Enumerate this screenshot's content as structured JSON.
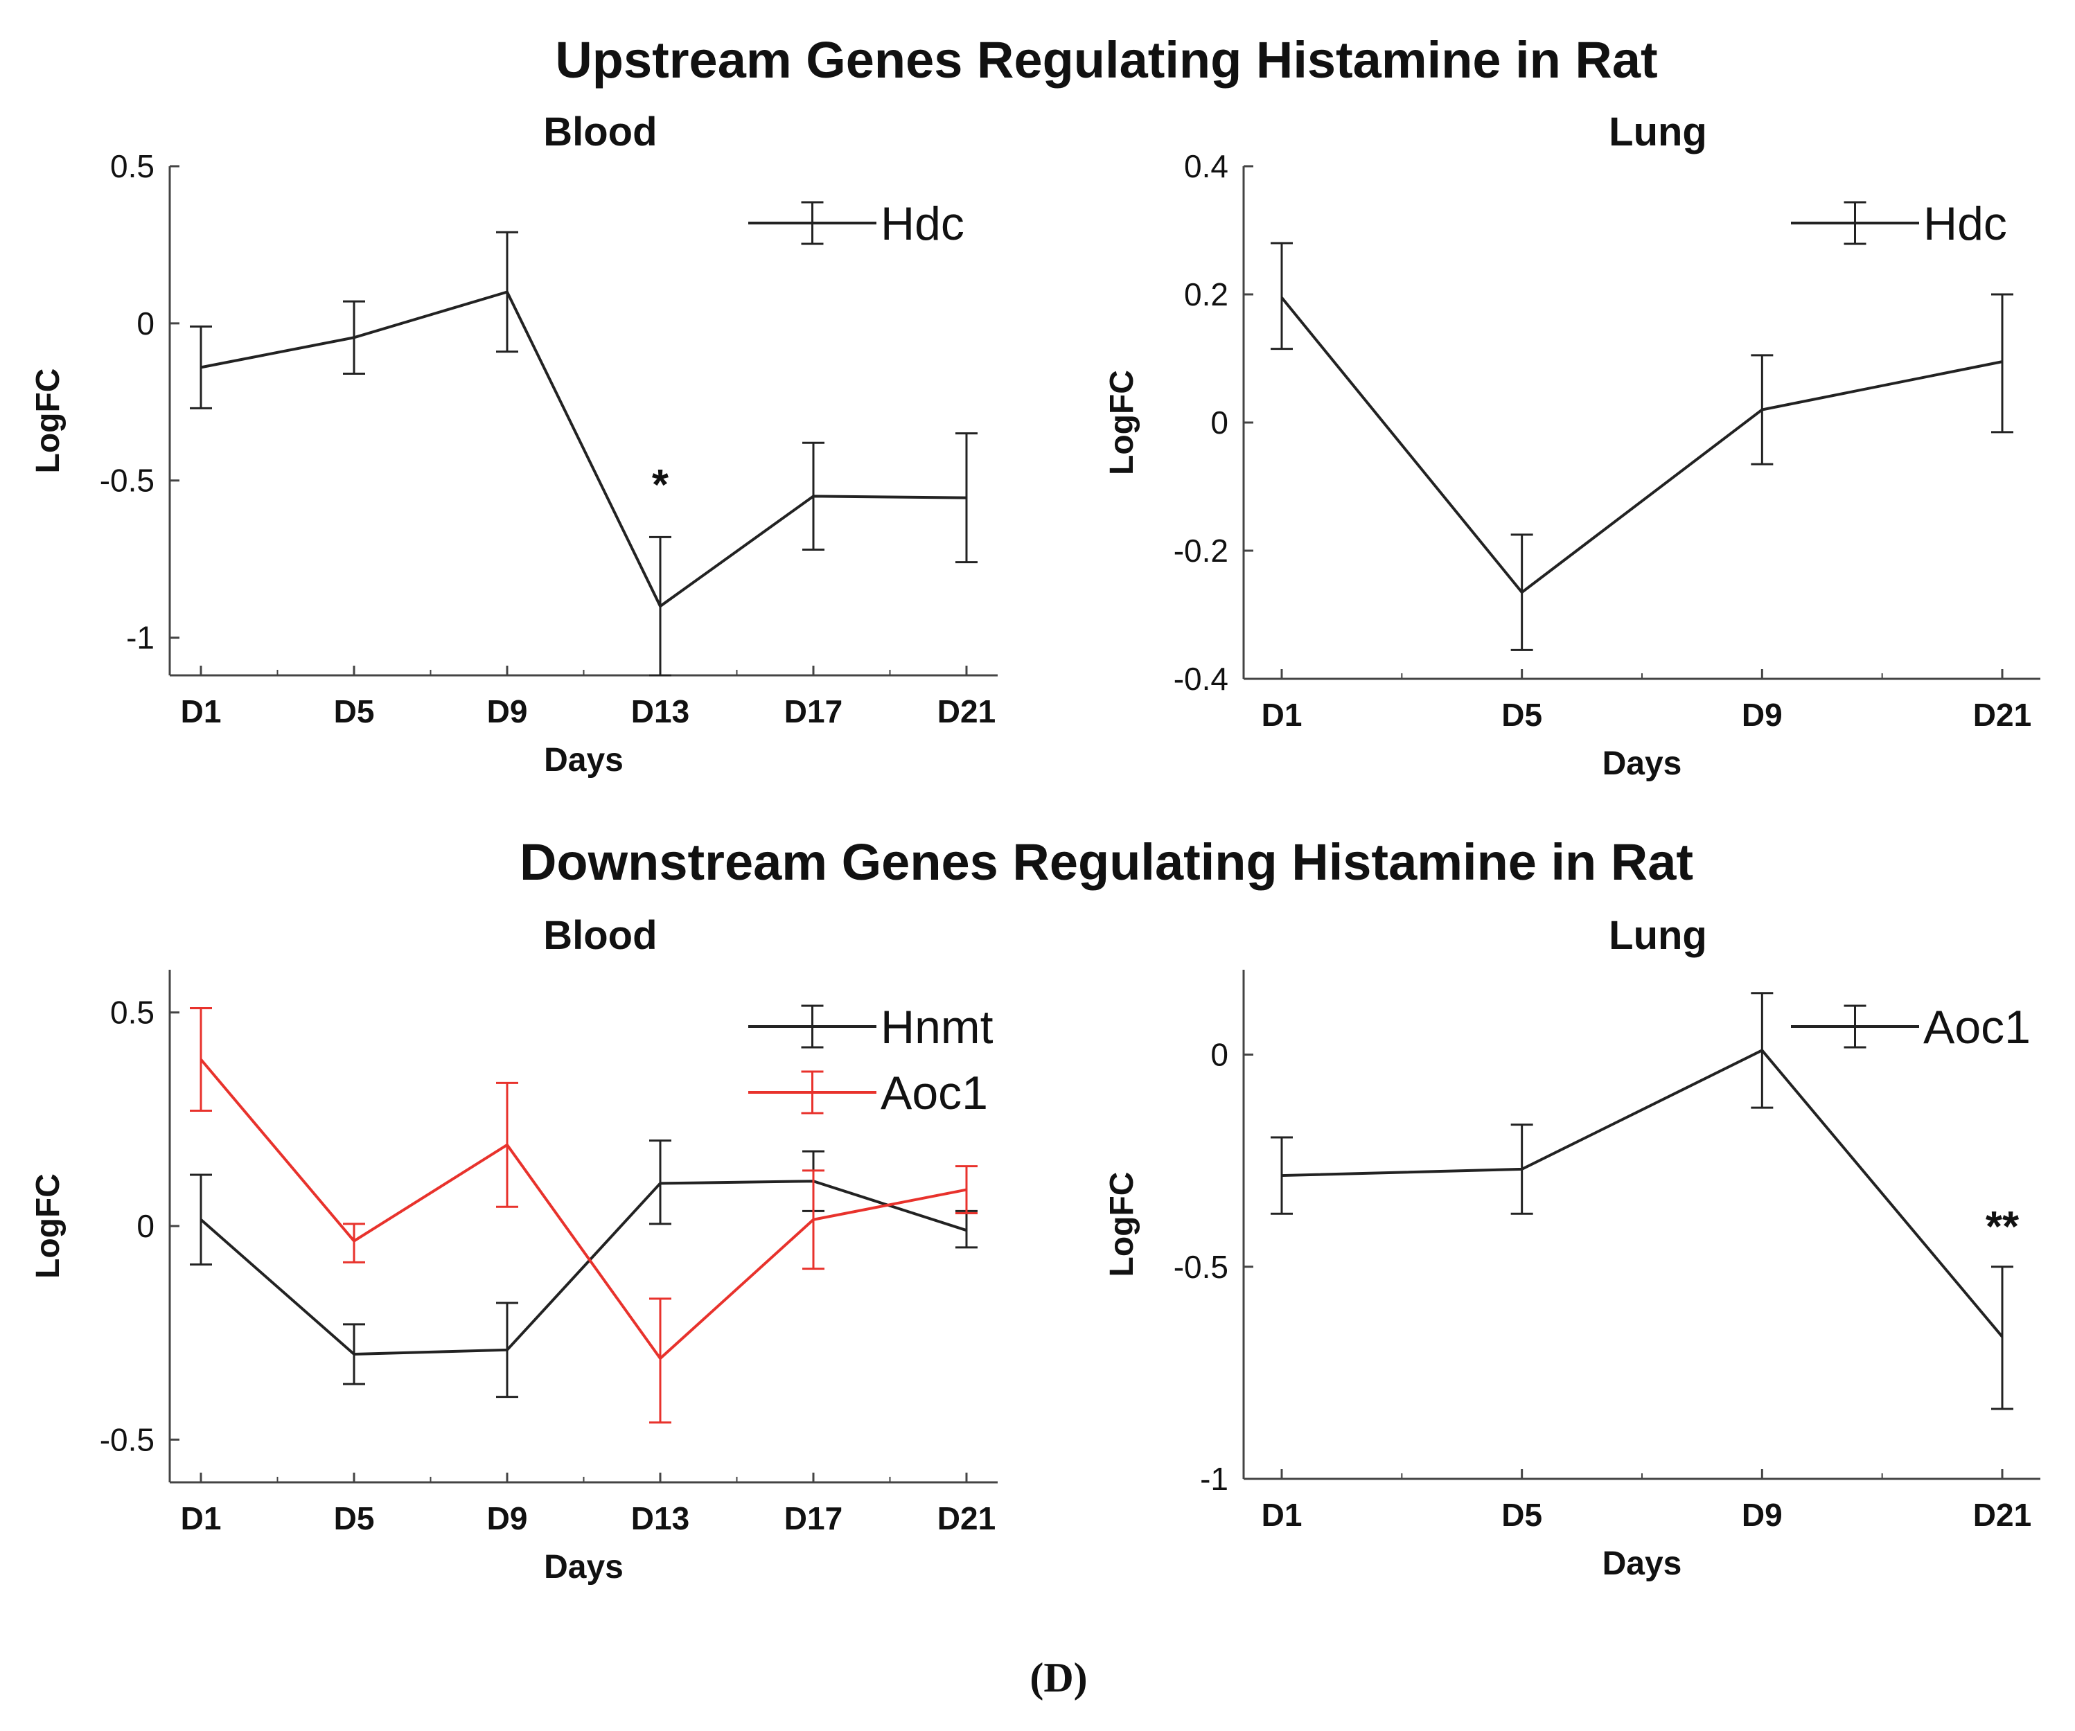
{
  "sections": [
    {
      "title": "Upstream Genes Regulating Histamine in Rat"
    },
    {
      "title": "Downstream Genes Regulating Histamine in Rat"
    }
  ],
  "caption": "(D)",
  "chart_data": [
    {
      "type": "line",
      "title": "Blood",
      "xlabel": "Days",
      "ylabel": "LogFC",
      "categories": [
        "D1",
        "D5",
        "D9",
        "D13",
        "D17",
        "D21"
      ],
      "ylim": [
        -1.12,
        0.5
      ],
      "yticks": [
        0.5,
        0,
        -0.5,
        -1
      ],
      "ytick_labels": [
        "0.5",
        "0",
        "-0.5",
        "-1"
      ],
      "legend": "top-right",
      "series": [
        {
          "name": "Hdc",
          "color": "#222222",
          "values": [
            -0.14,
            -0.045,
            0.1,
            -0.9,
            -0.55,
            -0.555
          ],
          "err_low": [
            -0.27,
            -0.16,
            -0.09,
            -1.12,
            -0.72,
            -0.76
          ],
          "err_high": [
            -0.01,
            0.07,
            0.29,
            -0.68,
            -0.38,
            -0.35
          ]
        }
      ],
      "annotations": [
        {
          "text": "*",
          "category": "D13",
          "value": -0.56
        }
      ]
    },
    {
      "type": "line",
      "title": "Lung",
      "xlabel": "Days",
      "ylabel": "LogFC",
      "categories": [
        "D1",
        "D5",
        "D9",
        "D21"
      ],
      "ylim": [
        -0.4,
        0.4
      ],
      "yticks": [
        0.4,
        0.2,
        0,
        -0.2,
        -0.4
      ],
      "ytick_labels": [
        "0.4",
        "0.2",
        "0",
        "-0.2",
        "-0.4"
      ],
      "legend": "top-right",
      "series": [
        {
          "name": "Hdc",
          "color": "#222222",
          "values": [
            0.195,
            -0.265,
            0.02,
            0.095
          ],
          "err_low": [
            0.115,
            -0.355,
            -0.065,
            -0.015
          ],
          "err_high": [
            0.28,
            -0.175,
            0.105,
            0.2
          ]
        }
      ],
      "annotations": []
    },
    {
      "type": "line",
      "title": "Blood",
      "xlabel": "Days",
      "ylabel": "LogFC",
      "categories": [
        "D1",
        "D5",
        "D9",
        "D13",
        "D17",
        "D21"
      ],
      "ylim": [
        -0.6,
        0.6
      ],
      "yticks": [
        0.5,
        0,
        -0.5
      ],
      "ytick_labels": [
        "0.5",
        "0",
        "-0.5"
      ],
      "legend": "top-right",
      "series": [
        {
          "name": "Hnmt",
          "color": "#222222",
          "values": [
            0.015,
            -0.3,
            -0.29,
            0.1,
            0.105,
            -0.01
          ],
          "err_low": [
            -0.09,
            -0.37,
            -0.4,
            0.005,
            0.035,
            -0.05
          ],
          "err_high": [
            0.12,
            -0.23,
            -0.18,
            0.2,
            0.175,
            0.035
          ]
        },
        {
          "name": "Aoc1",
          "color": "#e8322c",
          "values": [
            0.39,
            -0.035,
            0.19,
            -0.31,
            0.015,
            0.085
          ],
          "err_low": [
            0.27,
            -0.085,
            0.045,
            -0.46,
            -0.1,
            0.03
          ],
          "err_high": [
            0.51,
            0.005,
            0.335,
            -0.17,
            0.13,
            0.14
          ]
        }
      ],
      "annotations": []
    },
    {
      "type": "line",
      "title": "Lung",
      "xlabel": "Days",
      "ylabel": "LogFC",
      "categories": [
        "D1",
        "D5",
        "D9",
        "D21"
      ],
      "ylim": [
        -1.0,
        0.2
      ],
      "yticks": [
        0,
        -0.5,
        -1
      ],
      "ytick_labels": [
        "0",
        "-0.5",
        "-1"
      ],
      "legend": "top-right",
      "series": [
        {
          "name": "Aoc1",
          "color": "#222222",
          "values": [
            -0.285,
            -0.27,
            0.01,
            -0.665
          ],
          "err_low": [
            -0.375,
            -0.375,
            -0.125,
            -0.835
          ],
          "err_high": [
            -0.195,
            -0.165,
            0.145,
            -0.5
          ]
        }
      ],
      "annotations": [
        {
          "text": "**",
          "category": "D21",
          "value": -0.44
        }
      ]
    }
  ]
}
